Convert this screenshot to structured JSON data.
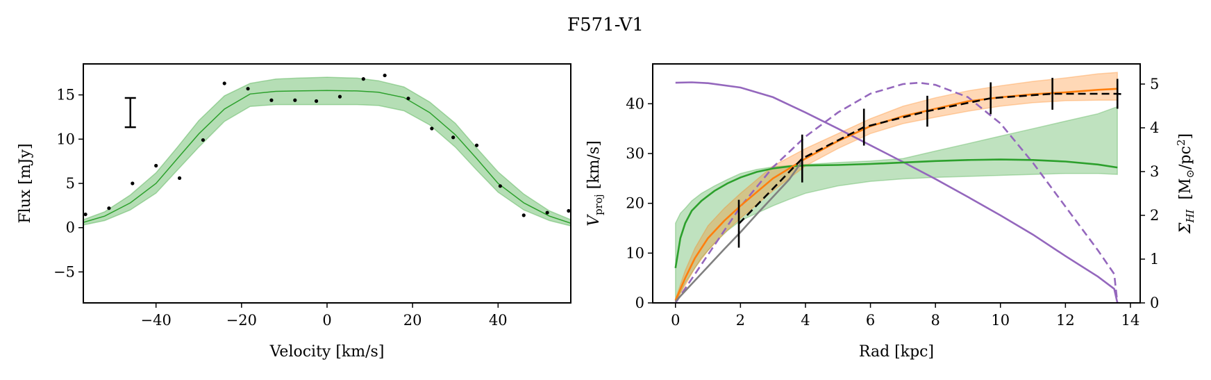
{
  "figure": {
    "title": "F571-V1"
  },
  "colors": {
    "green": "#2ca02c",
    "green_fill": "#2ca02c",
    "orange": "#ff7f0e",
    "purple": "#9467bd",
    "gray": "#808080",
    "black": "#000000"
  },
  "chart_data": [
    {
      "type": "line",
      "name": "spectrum",
      "xlabel": "Velocity [km/s]",
      "ylabel": "Flux [mJy]",
      "xlim": [
        -57,
        57
      ],
      "ylim": [
        -8.5,
        18.5
      ],
      "xticks": [
        -40,
        -20,
        0,
        20,
        40
      ],
      "yticks": [
        -5,
        0,
        5,
        10,
        15
      ],
      "model": {
        "x": [
          -57,
          -52,
          -46,
          -40,
          -35,
          -30,
          -24,
          -18,
          -12,
          -7,
          0,
          7,
          12,
          18,
          24,
          30,
          35,
          40,
          46,
          52,
          57
        ],
        "y": [
          0.6,
          1.3,
          2.8,
          5,
          7.8,
          10.6,
          13.4,
          15.1,
          15.4,
          15.45,
          15.5,
          15.45,
          15.3,
          14.7,
          13,
          10.5,
          7.8,
          5,
          2.8,
          1.3,
          0.5
        ],
        "lower": [
          0.3,
          0.8,
          2,
          3.9,
          6.5,
          9.1,
          12,
          13.7,
          13.9,
          13.9,
          13.9,
          13.9,
          13.8,
          13.2,
          11.6,
          9.1,
          6.5,
          4,
          2,
          0.8,
          0.2
        ],
        "upper": [
          0.9,
          1.8,
          3.7,
          6.2,
          9.1,
          12.1,
          14.9,
          16.3,
          16.8,
          16.9,
          17,
          16.9,
          16.6,
          15.9,
          14.2,
          11.8,
          9,
          6.3,
          3.8,
          1.9,
          0.9
        ]
      },
      "data_points": {
        "x": [
          -56.5,
          -51,
          -45.5,
          -40,
          -34.5,
          -29,
          -24,
          -18.5,
          -13,
          -7.5,
          -2.5,
          3,
          8.5,
          13.5,
          19,
          24.5,
          29.5,
          35,
          40.5,
          46,
          51.5,
          56.5
        ],
        "y": [
          1.5,
          2.2,
          5,
          7,
          5.6,
          9.9,
          16.3,
          15.7,
          14.4,
          14.4,
          14.3,
          14.8,
          16.8,
          17.2,
          14.6,
          11.2,
          10.2,
          9.3,
          4.7,
          1.4,
          1.7,
          1.9
        ]
      },
      "error_bar": {
        "x": -46,
        "y": 13,
        "err": 1.65
      }
    },
    {
      "type": "line",
      "name": "rotation_curve",
      "xlabel": "Rad [kpc]",
      "ylabel": "V_proj [km/s]",
      "ylabel_main": "V",
      "ylabel_sub": "proj",
      "ylabel_unit": " [km/s]",
      "ylabel2": "Σ_HI [M☉/pc²]",
      "ylabel2_sigma": "Σ",
      "ylabel2_sub": "HI",
      "ylabel2_unit": "[M",
      "ylabel2_sun": "⊙",
      "ylabel2_rest": "/pc",
      "ylabel2_sup": "2",
      "ylabel2_close": "]",
      "xlim": [
        -0.7,
        14.3
      ],
      "ylim": [
        0,
        48
      ],
      "ylim2": [
        0,
        5.46
      ],
      "xticks": [
        0,
        2,
        4,
        6,
        8,
        10,
        12,
        14
      ],
      "yticks": [
        0,
        10,
        20,
        30,
        40
      ],
      "yticks2": [
        0,
        1,
        2,
        3,
        4,
        5
      ],
      "series": [
        {
          "name": "green",
          "x": [
            0,
            0.15,
            0.3,
            0.5,
            0.8,
            1.2,
            1.6,
            2,
            2.5,
            3,
            3.5,
            4,
            5,
            6,
            7,
            8,
            9,
            10,
            11,
            12,
            13,
            13.6
          ],
          "y": [
            7,
            13,
            16,
            18.5,
            20.5,
            22.5,
            24,
            25.2,
            26.3,
            27,
            27.4,
            27.6,
            27.7,
            27.9,
            28.2,
            28.5,
            28.7,
            28.8,
            28.7,
            28.4,
            27.8,
            27.2
          ],
          "lower": [
            0,
            2,
            4,
            6,
            9,
            12,
            14.5,
            16.5,
            18,
            19.5,
            20.8,
            22,
            23.5,
            24.4,
            24.9,
            25.2,
            25.4,
            25.6,
            25.8,
            26,
            26,
            25.8
          ],
          "upper": [
            16,
            18,
            19,
            20.5,
            22,
            23.5,
            24.8,
            26,
            26.8,
            27.3,
            27.6,
            27.8,
            28.2,
            28.5,
            29,
            30.5,
            32,
            33.5,
            35,
            36.5,
            38,
            39.4
          ]
        },
        {
          "name": "orange",
          "x": [
            0,
            0.3,
            0.6,
            1,
            1.5,
            2,
            3,
            4,
            5,
            6,
            7,
            8,
            9,
            10,
            11,
            12,
            13,
            13.6
          ],
          "y": [
            0.5,
            5,
            9,
            13,
            16.5,
            19.5,
            25,
            29,
            32.5,
            35.5,
            37.5,
            39,
            40.5,
            41.3,
            41.9,
            42.3,
            42.8,
            43
          ],
          "lower": [
            0.2,
            3.5,
            7,
            10.5,
            14,
            17,
            22.5,
            27.5,
            31,
            34,
            36,
            37.3,
            38.5,
            39.5,
            40.2,
            40.6,
            40.7,
            40.7
          ],
          "upper": [
            0.8,
            6.5,
            11,
            15.5,
            19,
            22,
            27.5,
            31,
            34,
            37,
            39.5,
            41.2,
            42.6,
            43.6,
            44.5,
            45.2,
            46,
            46.3
          ]
        },
        {
          "name": "gray",
          "x": [
            0,
            0.5,
            1,
            1.5,
            2,
            2.5,
            3,
            3.5,
            3.9
          ],
          "y": [
            0.3,
            3.8,
            7.3,
            10.8,
            14.2,
            17.8,
            21.3,
            24.8,
            28.5
          ]
        },
        {
          "name": "black-dashed",
          "x": [
            1.95,
            3.9,
            5.8,
            7.75,
            9.7,
            11.6,
            13.6,
            13.8
          ],
          "y": [
            15.9,
            29,
            35.3,
            38.5,
            41.1,
            42,
            42,
            41.9
          ]
        },
        {
          "name": "purple-solid",
          "axis": "right",
          "x": [
            0,
            0.5,
            1,
            2,
            3,
            4,
            5,
            6,
            7,
            8,
            9,
            10,
            11,
            12,
            13,
            13.5,
            13.6
          ],
          "y": [
            5.03,
            5.04,
            5.02,
            4.92,
            4.7,
            4.35,
            3.98,
            3.6,
            3.22,
            2.83,
            2.42,
            2,
            1.56,
            1.07,
            0.6,
            0.32,
            0
          ]
        },
        {
          "name": "purple-dashed",
          "axis": "right",
          "x": [
            0,
            1,
            2,
            3,
            4,
            5,
            6,
            7,
            7.5,
            8,
            9,
            10,
            11,
            12,
            13,
            13.5,
            13.6
          ],
          "y": [
            0,
            1.1,
            2.2,
            3.1,
            3.8,
            4.35,
            4.78,
            5,
            5.03,
            4.98,
            4.7,
            4.1,
            3.2,
            2.2,
            1.2,
            0.66,
            0
          ]
        }
      ],
      "error_bars": {
        "x": [
          1.95,
          3.9,
          5.8,
          7.75,
          9.7,
          11.6,
          13.6
        ],
        "y": [
          15.9,
          29,
          35.3,
          38.5,
          41.1,
          42,
          42
        ],
        "err": [
          4.8,
          4.8,
          3.7,
          3.1,
          3.2,
          3.2,
          3
        ]
      }
    }
  ]
}
